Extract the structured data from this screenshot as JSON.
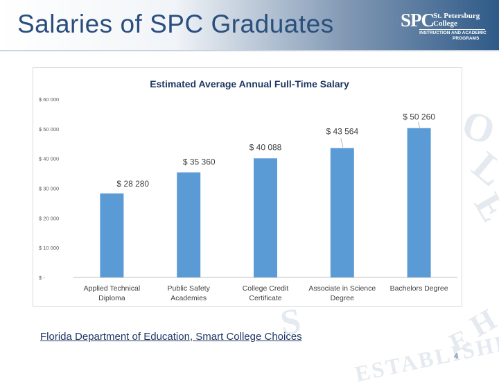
{
  "slide": {
    "title": "Salaries of SPC Graduates",
    "page_number": "4",
    "source_link": "Florida Department of Education, Smart College Choices",
    "colors": {
      "title": "#2a4f7d",
      "bar": "#5b9bd5",
      "header_dark": "#2f5a88"
    }
  },
  "logo": {
    "mark": "SPC",
    "line1": "St. Petersburg",
    "line2": "College",
    "line3": "INSTRUCTION AND ACADEMIC",
    "line4": "PROGRAMS"
  },
  "watermark": {
    "letters": [
      "O",
      "L",
      "E",
      "S",
      "H",
      "E",
      "ESTABLISHED"
    ]
  },
  "chart_data": {
    "type": "bar",
    "title": "Estimated Average Annual Full-Time Salary",
    "categories": [
      [
        "Applied Technical",
        "Diploma"
      ],
      [
        "Public Safety",
        "Academies"
      ],
      [
        "College Credit",
        "Certificate"
      ],
      [
        "Associate in Science",
        "Degree"
      ],
      [
        "Bachelors Degree"
      ]
    ],
    "values": [
      28280,
      35360,
      40088,
      43564,
      50260
    ],
    "value_labels": [
      "$ 28 280",
      "$ 35 360",
      "$ 40 088",
      "$ 43 564",
      "$ 50 260"
    ],
    "y_ticks": [
      0,
      10000,
      20000,
      30000,
      40000,
      50000,
      60000
    ],
    "y_tick_labels": [
      "$ -",
      "$ 10 000",
      "$ 20 000",
      "$ 30 000",
      "$ 40 000",
      "$ 50 000",
      "$ 60 000"
    ],
    "ylim": [
      0,
      60000
    ],
    "grid": false,
    "legend": "none"
  }
}
